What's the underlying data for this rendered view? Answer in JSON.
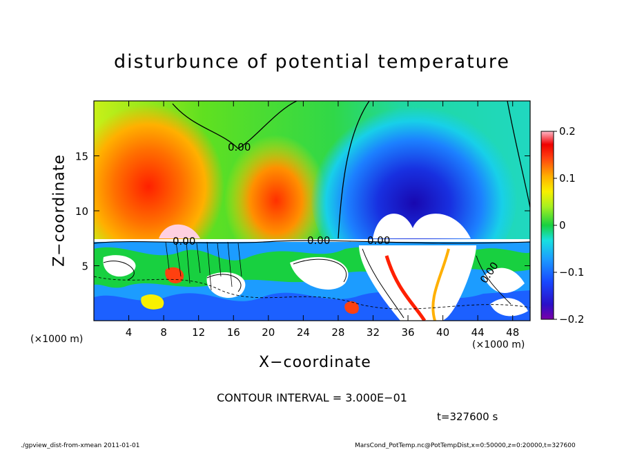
{
  "chart_data": {
    "type": "heatmap",
    "title": "disturbunce of potential temperature",
    "xlabel": "X−coordinate",
    "ylabel": "Z−coordinate",
    "x_unit_left": "(×1000 m)",
    "x_unit_right": "(×1000 m)",
    "xlim": [
      0,
      50
    ],
    "ylim": [
      0,
      20
    ],
    "x_ticks": [
      "4",
      "8",
      "12",
      "16",
      "20",
      "24",
      "28",
      "32",
      "36",
      "40",
      "44",
      "48"
    ],
    "x_tick_values": [
      4,
      8,
      12,
      16,
      20,
      24,
      28,
      32,
      36,
      40,
      44,
      48
    ],
    "y_ticks": [
      "5",
      "10",
      "15"
    ],
    "y_tick_values": [
      5,
      10,
      15
    ],
    "colorbar": {
      "range": [
        -0.2,
        0.2
      ],
      "ticks": [
        "0.2",
        "0.1",
        "0",
        "−0.1",
        "−0.2"
      ],
      "tick_values": [
        0.2,
        0.1,
        0,
        -0.1,
        -0.2
      ]
    },
    "contour_labels": [
      "0.00",
      "0.00",
      "0.00",
      "0.00",
      "0.00"
    ],
    "contour_interval_text": "CONTOUR INTERVAL = 3.000E−01",
    "time_text": "t=327600 s"
  },
  "footer": {
    "left": "./gpview_dist-from-xmean  2011-01-01",
    "right": "MarsCond_PotTemp.nc@PotTempDist,x=0:50000,z=0:20000,t=327600"
  }
}
